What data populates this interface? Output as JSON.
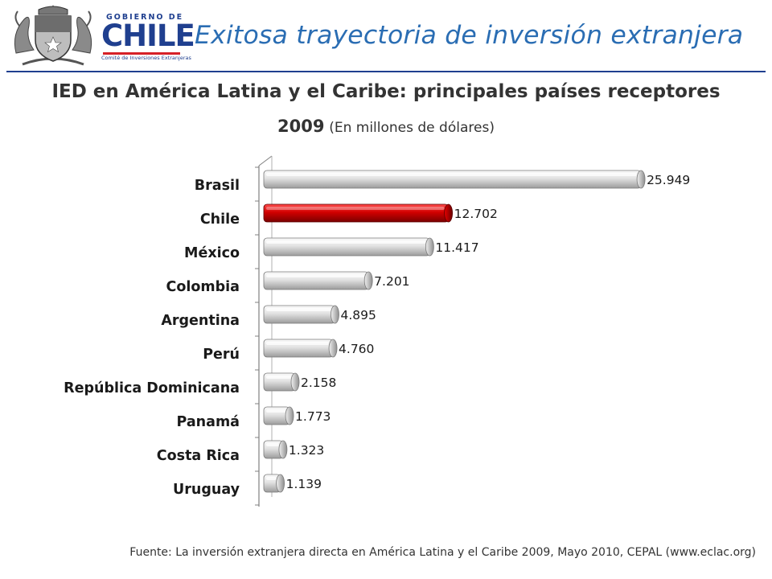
{
  "header": {
    "logo": {
      "gobierno": "GOBIERNO DE",
      "chile": "CHILE",
      "committee": "Comité de Inversiones Extranjeras"
    },
    "title": "Exitosa trayectoria de inversión extranjera"
  },
  "chart_title": "IED en América Latina y el Caribe: principales países receptores",
  "chart_subtitle": {
    "year": "2009",
    "unit": "(En millones de dólares)"
  },
  "colors": {
    "highlight": "#c00000",
    "bar": "#e0e0e0",
    "title_blue": "#2a6db3",
    "rule_blue": "#1f3f8f"
  },
  "chart_data": {
    "type": "bar",
    "orientation": "horizontal",
    "title": "IED en América Latina y el Caribe: principales países receptores",
    "subtitle": "2009 (En millones de dólares)",
    "categories": [
      "Brasil",
      "Chile",
      "México",
      "Colombia",
      "Argentina",
      "Perú",
      "República Dominicana",
      "Panamá",
      "Costa Rica",
      "Uruguay"
    ],
    "values": [
      25949,
      12702,
      11417,
      7201,
      4895,
      4760,
      2158,
      1773,
      1323,
      1139
    ],
    "value_labels": [
      "25.949",
      "12.702",
      "11.417",
      "7.201",
      "4.895",
      "4.760",
      "2.158",
      "1.773",
      "1.323",
      "1.139"
    ],
    "highlight_category": "Chile",
    "xlim": [
      0,
      28000
    ],
    "xlabel": "",
    "ylabel": "",
    "grid": false,
    "legend": "none"
  },
  "source": "Fuente: La inversión extranjera directa en América Latina y el Caribe 2009, Mayo 2010, CEPAL (www.eclac.org)"
}
